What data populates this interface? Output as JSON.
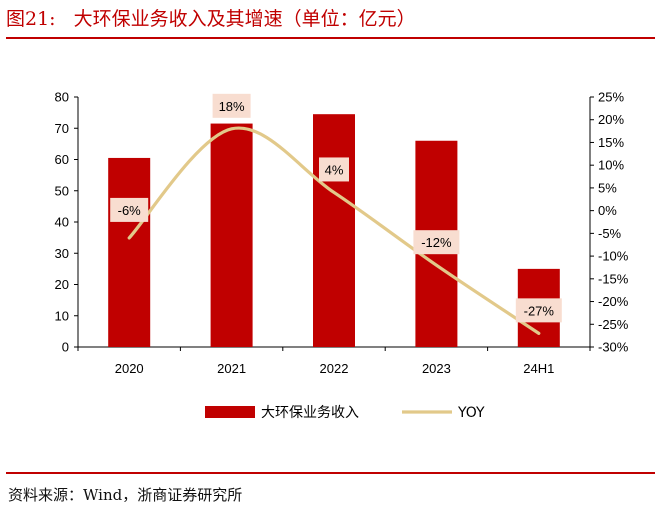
{
  "figure": {
    "label": "图21:",
    "title": "大环保业务收入及其增速（单位：亿元）",
    "source": "资料来源：Wind，浙商证券研究所"
  },
  "colors": {
    "bar": "#c00000",
    "line": "#e2c98a",
    "label_box": "#f8ddd0",
    "accent": "#c00000"
  },
  "chart_data": {
    "type": "bar",
    "categories": [
      "2020",
      "2021",
      "2022",
      "2023",
      "24H1"
    ],
    "series": [
      {
        "name": "大环保业务收入",
        "type": "bar",
        "axis": "left",
        "values": [
          60.5,
          71.5,
          74.5,
          66,
          25
        ]
      },
      {
        "name": "YOY",
        "type": "line",
        "axis": "right",
        "values": [
          -6,
          18,
          4,
          -12,
          -27
        ],
        "labels": [
          "-6%",
          "18%",
          "4%",
          "-12%",
          "-27%"
        ]
      }
    ],
    "ylim": [
      0,
      80
    ],
    "yticks": [
      0,
      10,
      20,
      30,
      40,
      50,
      60,
      70,
      80
    ],
    "y2lim": [
      -30,
      25
    ],
    "y2ticks": [
      25,
      20,
      15,
      10,
      5,
      0,
      -5,
      -10,
      -15,
      -20,
      -25,
      -30
    ],
    "y2tick_labels": [
      "25%",
      "20%",
      "15%",
      "10%",
      "5%",
      "0%",
      "-5%",
      "-10%",
      "-15%",
      "-20%",
      "-25%",
      "-30%"
    ],
    "title": "",
    "xlabel": "",
    "ylabel": "",
    "y2label": "",
    "legend": [
      "大环保业务收入",
      "YOY"
    ],
    "legend_position": "bottom"
  }
}
